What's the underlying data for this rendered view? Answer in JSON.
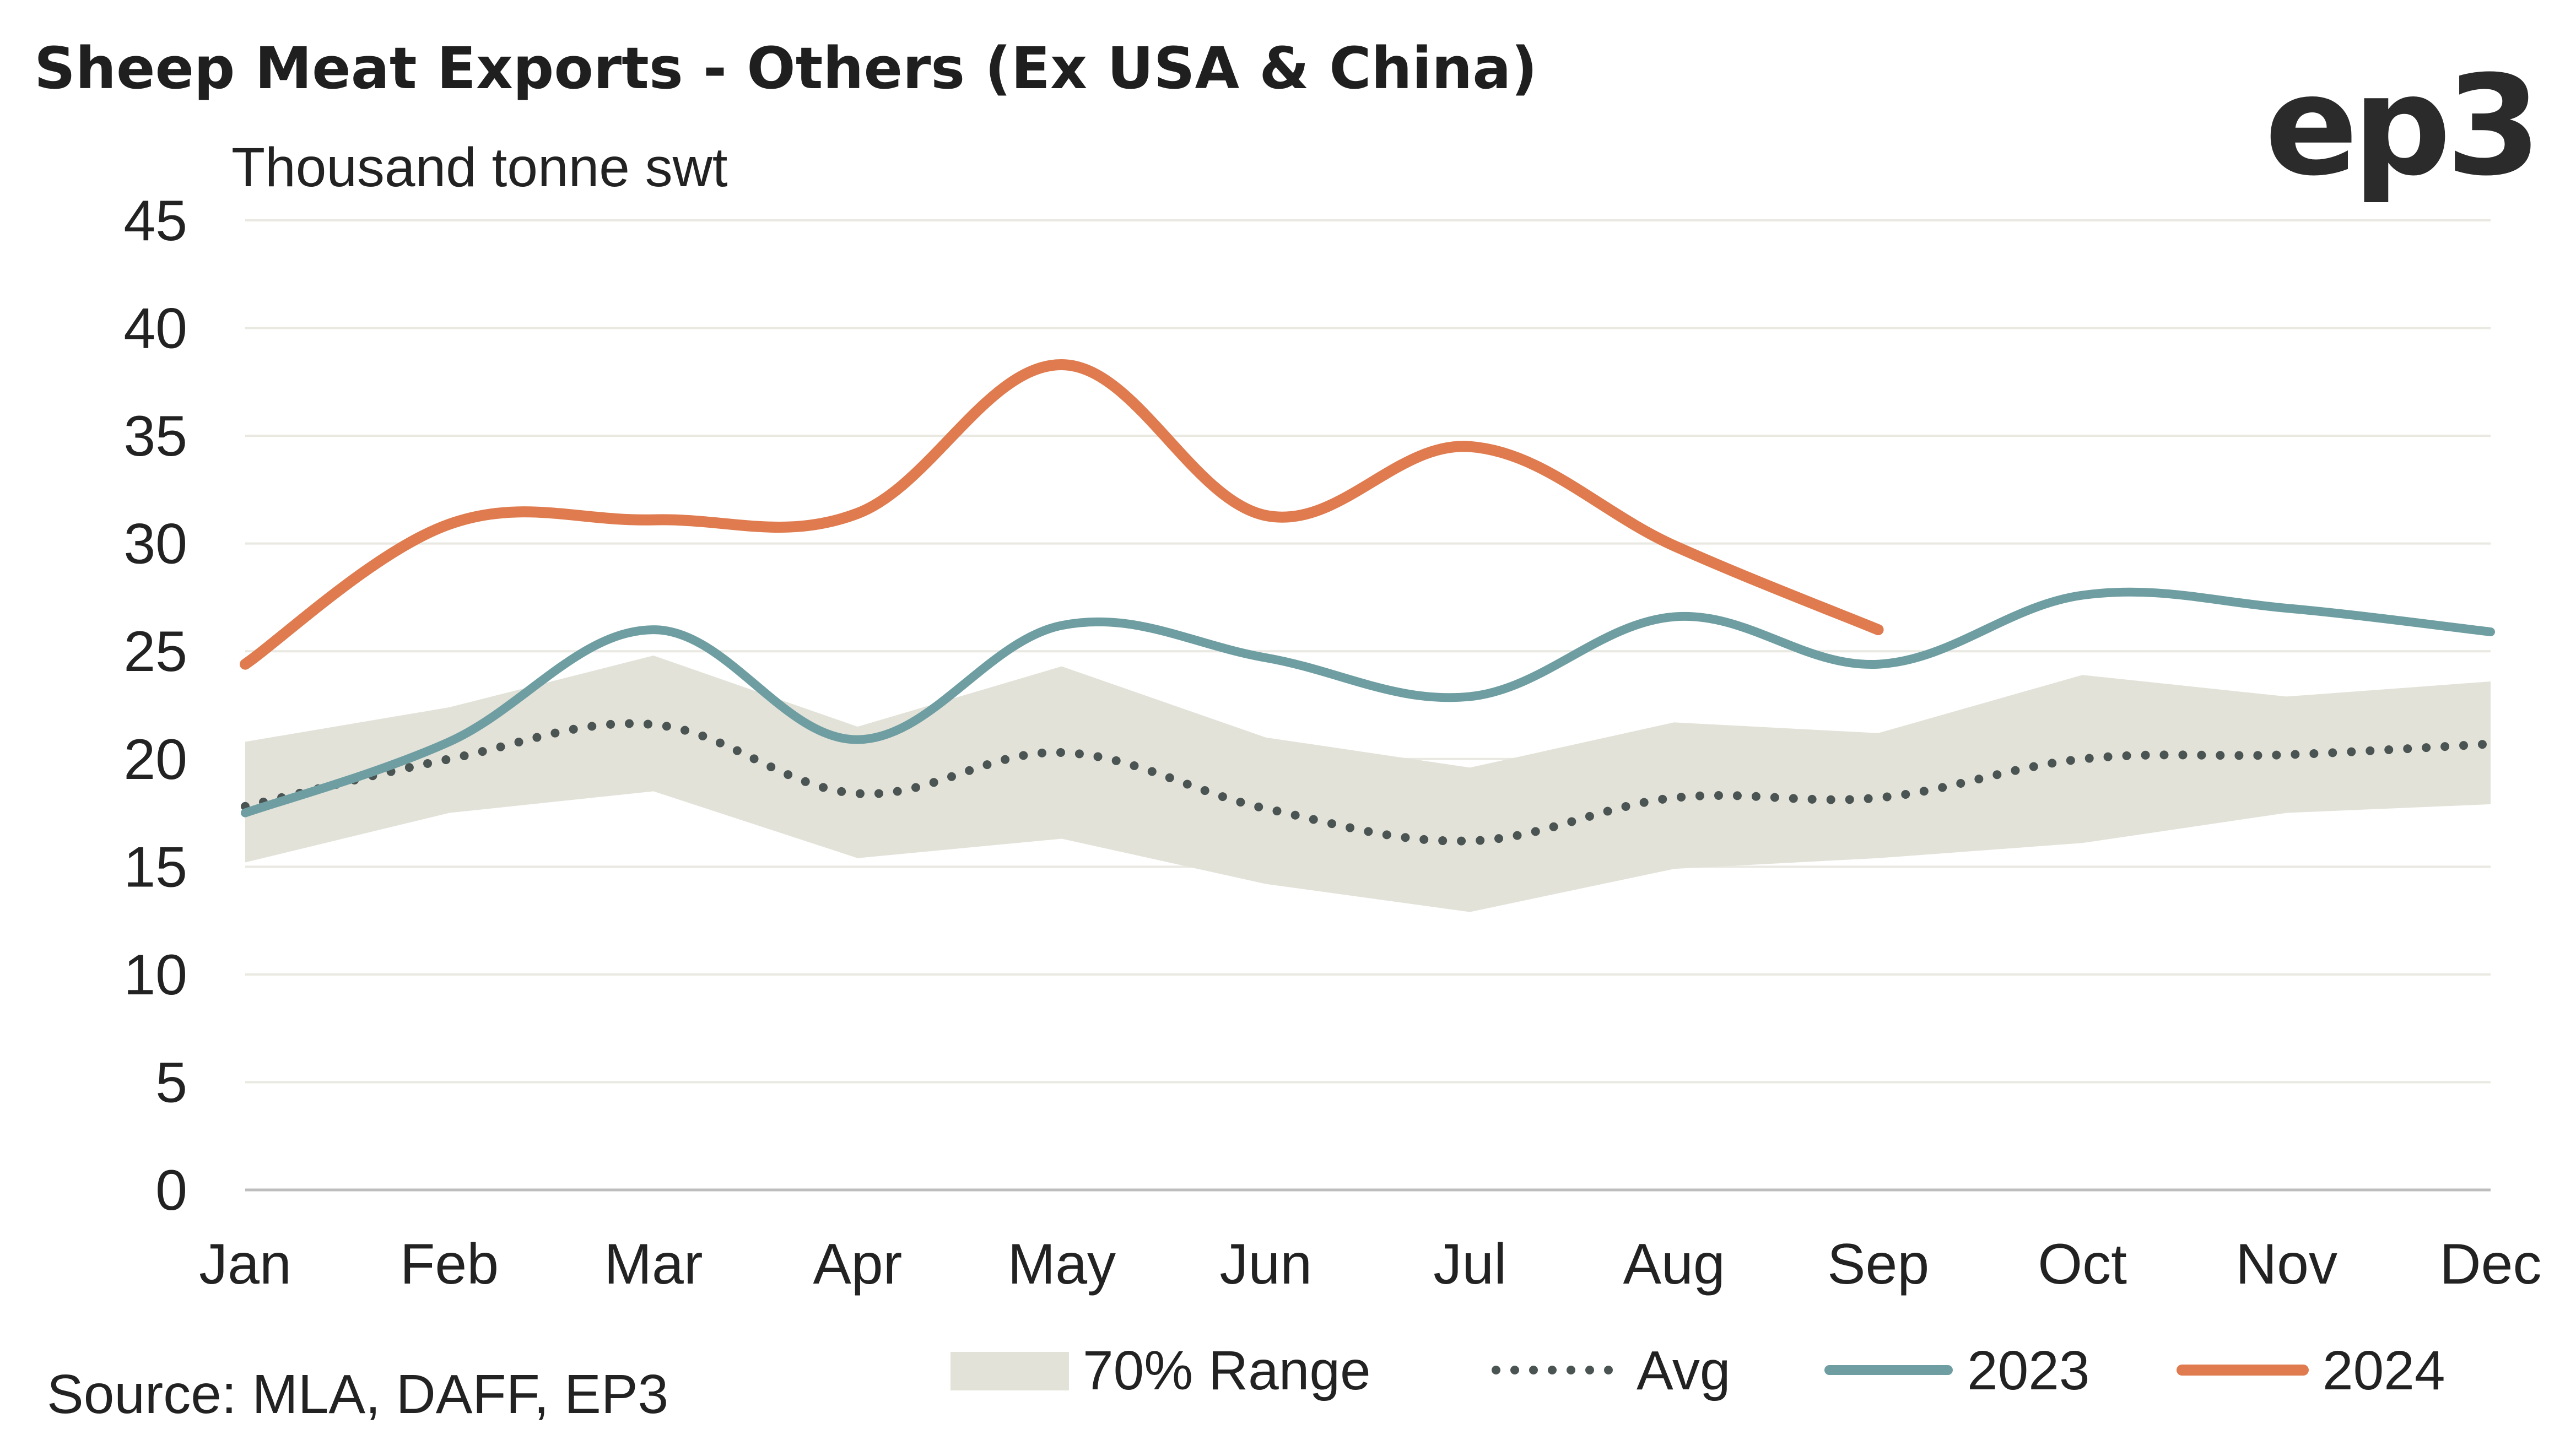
{
  "header": {
    "title": "Sheep Meat Exports - Others (Ex USA & China)",
    "logo_text": "ep3"
  },
  "source": "Source: MLA, DAFF, EP3",
  "colors": {
    "range": "#e3e2d9",
    "avg": "#4a5453",
    "s2023": "#6f9ea2",
    "s2024": "#df7b4e",
    "grid": "#e9e8e1",
    "axis": "#bdbdbd"
  },
  "chart_data": {
    "type": "line",
    "title": "Sheep Meat Exports - Others (Ex USA & China)",
    "ylabel": "Thousand tonne swt",
    "xlabel": "",
    "categories": [
      "Jan",
      "Feb",
      "Mar",
      "Apr",
      "May",
      "Jun",
      "Jul",
      "Aug",
      "Sep",
      "Oct",
      "Nov",
      "Dec"
    ],
    "ylim": [
      0,
      45
    ],
    "yticks": [
      0,
      5,
      10,
      15,
      20,
      25,
      30,
      35,
      40,
      45
    ],
    "grid": true,
    "legend_position": "bottom-right",
    "range_band": {
      "name": "70% Range",
      "low": [
        15.2,
        17.5,
        18.5,
        15.4,
        16.3,
        14.2,
        12.9,
        14.9,
        15.4,
        16.1,
        17.5,
        17.9
      ],
      "high": [
        20.8,
        22.4,
        24.8,
        21.5,
        24.3,
        21.0,
        19.6,
        21.7,
        21.2,
        23.9,
        22.9,
        23.6
      ]
    },
    "series": [
      {
        "name": "Avg",
        "style": "dotted",
        "values": [
          17.8,
          20.0,
          21.6,
          18.4,
          20.3,
          17.7,
          16.2,
          18.2,
          18.2,
          20.0,
          20.2,
          20.7
        ]
      },
      {
        "name": "2023",
        "style": "solid",
        "values": [
          17.5,
          20.8,
          26.0,
          20.9,
          26.2,
          24.7,
          22.9,
          26.6,
          24.4,
          27.6,
          27.0,
          25.9
        ]
      },
      {
        "name": "2024",
        "style": "solid",
        "values": [
          24.4,
          30.9,
          31.1,
          31.4,
          38.3,
          31.3,
          34.5,
          29.9,
          26.0,
          null,
          null,
          null
        ]
      }
    ]
  }
}
